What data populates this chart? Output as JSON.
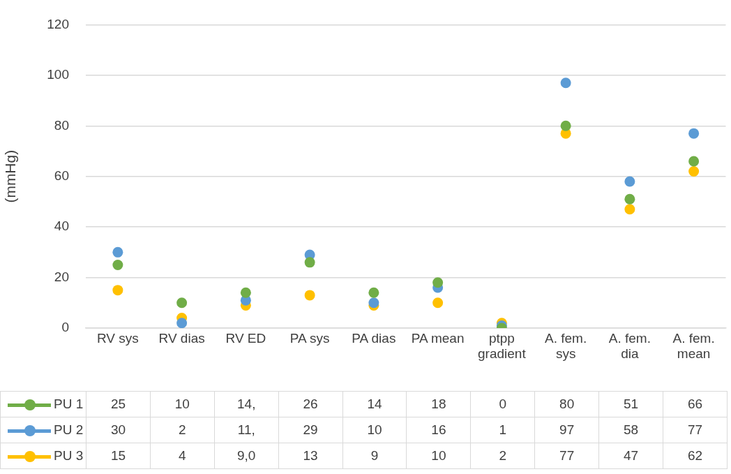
{
  "chart_data": {
    "type": "scatter",
    "ylabel": "(mmHg)",
    "categories": [
      "RV sys",
      "RV dias",
      "RV ED",
      "PA sys",
      "PA dias",
      "PA mean",
      "ptpp gradient",
      "A. fem. sys",
      "A. fem. dia",
      "A. fem. mean"
    ],
    "series": [
      {
        "name": "PU 1",
        "color": "#70ad47",
        "values": [
          25,
          10,
          14,
          26,
          14,
          18,
          0,
          80,
          51,
          66
        ],
        "value_labels": [
          "25",
          "10",
          "14,",
          "26",
          "14",
          "18",
          "0",
          "80",
          "51",
          "66"
        ]
      },
      {
        "name": "PU 2",
        "color": "#5b9bd5",
        "values": [
          30,
          2,
          11,
          29,
          10,
          16,
          1,
          97,
          58,
          77
        ],
        "value_labels": [
          "30",
          "2",
          "11,",
          "29",
          "10",
          "16",
          "1",
          "97",
          "58",
          "77"
        ]
      },
      {
        "name": "PU 3",
        "color": "#ffc000",
        "values": [
          15,
          4,
          9,
          13,
          9,
          10,
          2,
          77,
          47,
          62
        ],
        "value_labels": [
          "15",
          "4",
          "9,0",
          "13",
          "9",
          "10",
          "2",
          "77",
          "47",
          "62"
        ]
      }
    ],
    "ylim": [
      0,
      120
    ],
    "yticks": [
      0,
      20,
      40,
      60,
      80,
      100,
      120
    ],
    "grid": "y",
    "legend": "bottom",
    "marker": "circle"
  }
}
